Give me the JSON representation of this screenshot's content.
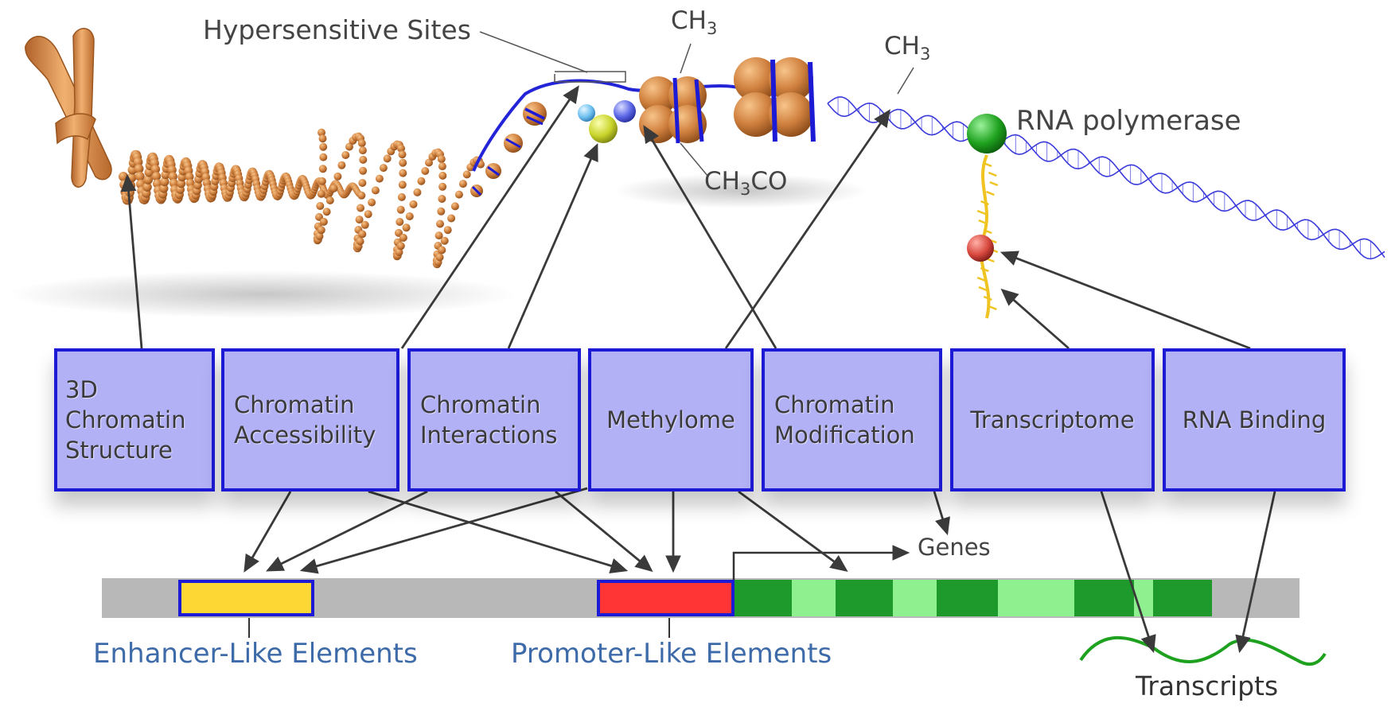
{
  "labels": {
    "hypersensitive_sites": "Hypersensitive Sites",
    "methyl_left_base": "CH",
    "methyl_left_sub": "3",
    "methyl_right_base": "CH",
    "methyl_right_sub": "3",
    "acetyl_pre": "CH",
    "acetyl_sub": "3",
    "acetyl_post": "CO",
    "rna_polymerase": "RNA polymerase",
    "genes": "Genes",
    "enhancer": "Enhancer-Like Elements",
    "promoter": "Promoter-Like Elements",
    "transcripts": "Transcripts"
  },
  "assays": [
    {
      "label": "3D Chromatin Structure"
    },
    {
      "label": "Chromatin Accessibility"
    },
    {
      "label": "Chromatin Interactions"
    },
    {
      "label": "Methylome"
    },
    {
      "label": "Chromatin Modification"
    },
    {
      "label": "Transcriptome"
    },
    {
      "label": "RNA Binding"
    }
  ],
  "colors": {
    "assay_fill": "#b3b1f6",
    "assay_border": "#1d1ad6",
    "enhancer": "#fdd835",
    "promoter": "#ff3434",
    "exon": "#1e9a2c",
    "intron": "#8ff08f",
    "genome_bar": "#b8b8b8",
    "element_label": "#3d6aa8",
    "chromatin": "#c9793a",
    "rna_pol": "#2aa52a",
    "transcript": "#1ea11e",
    "arrow": "#3a3a3a"
  }
}
